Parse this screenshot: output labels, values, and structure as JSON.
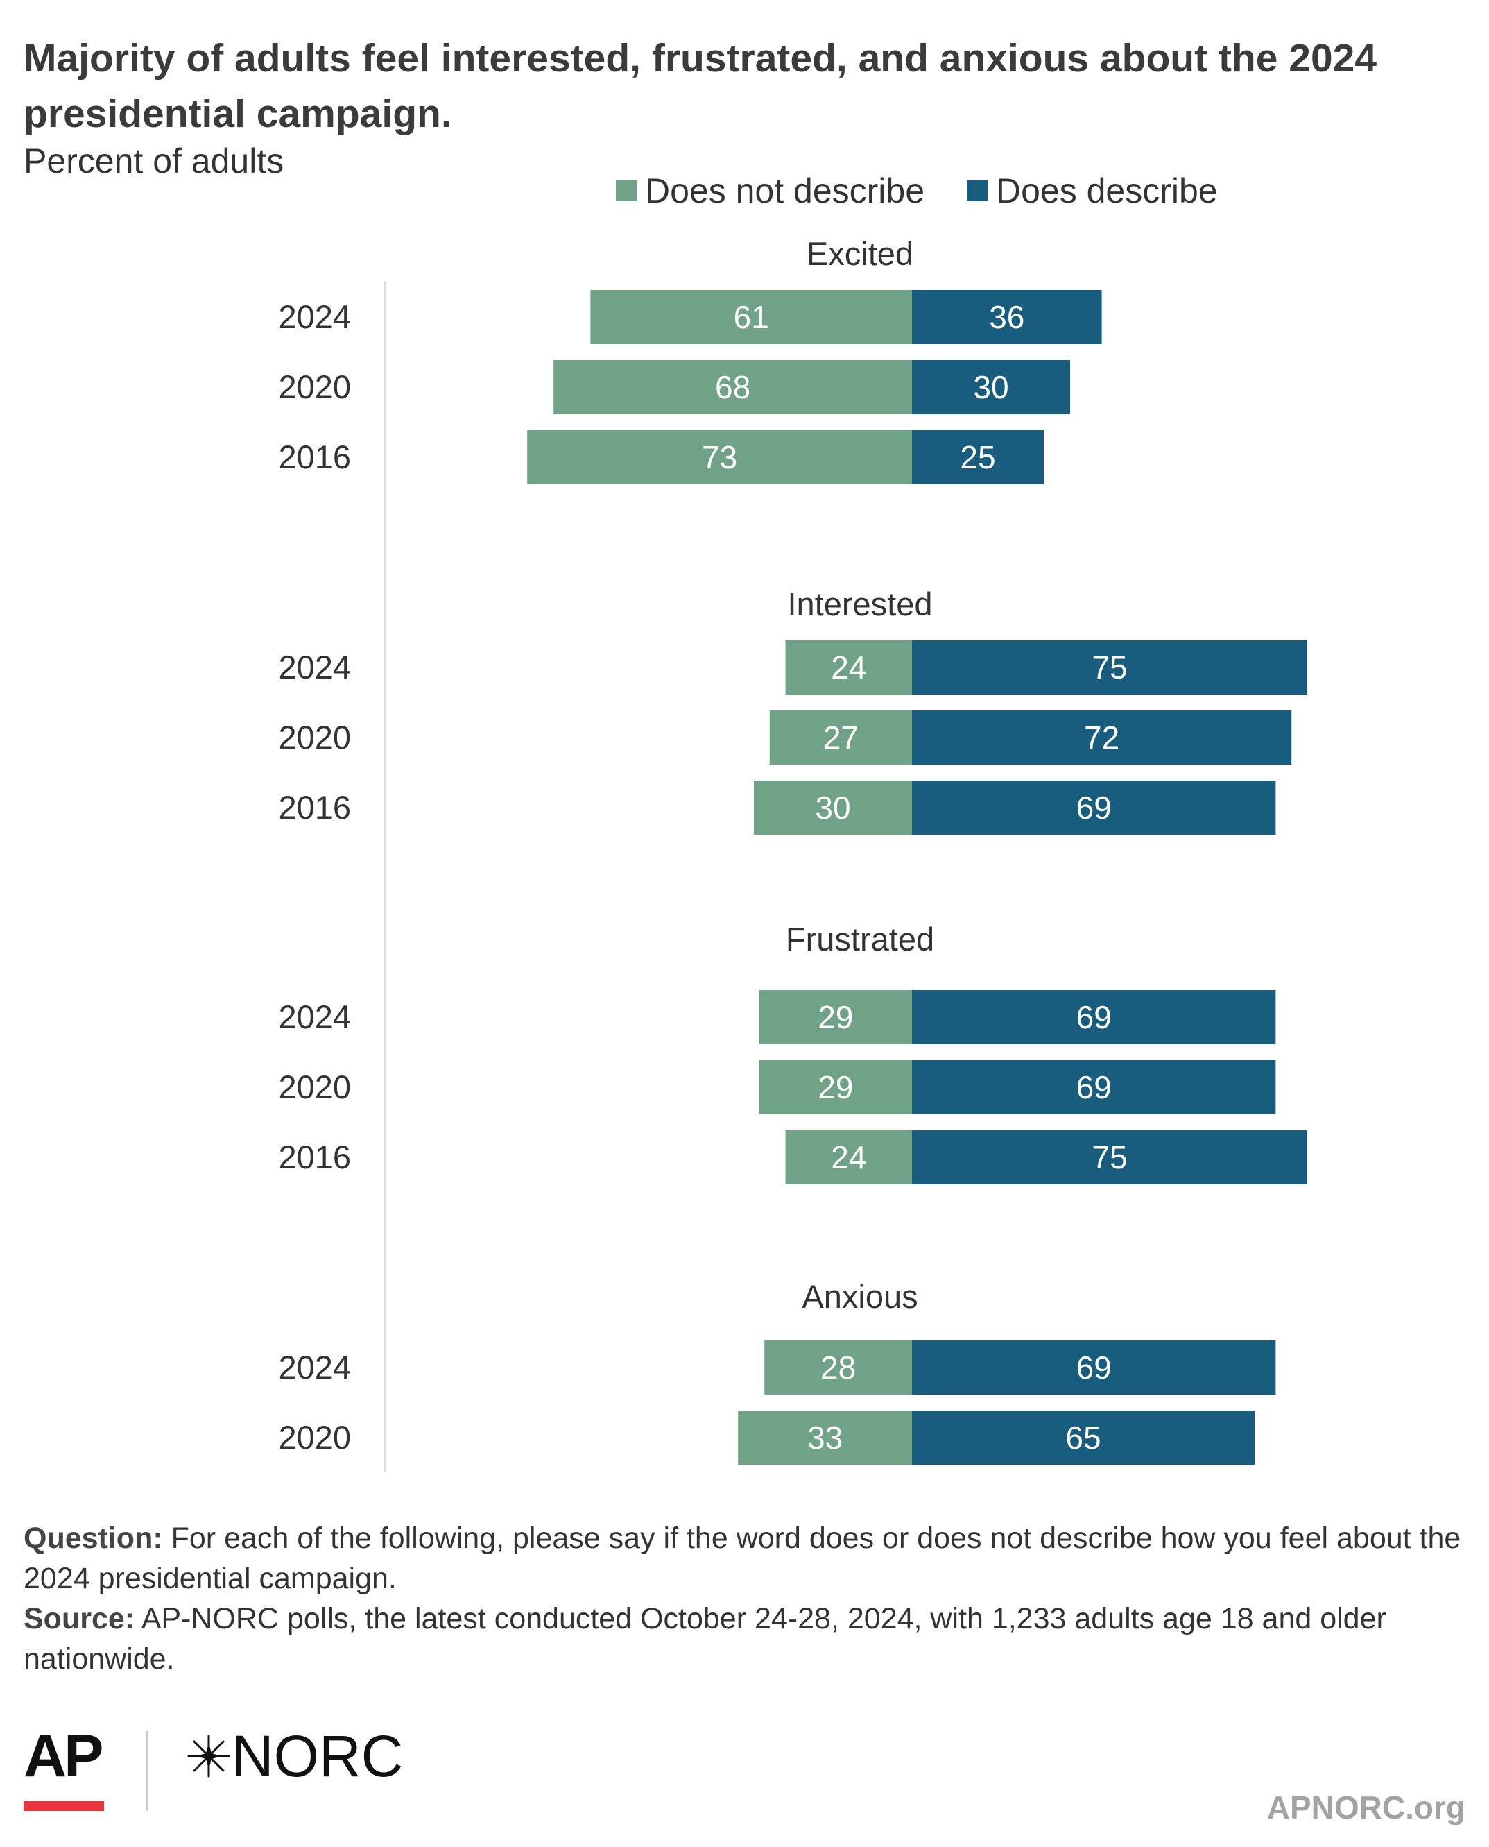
{
  "title": "Majority of adults feel interested, frustrated, and anxious about the 2024 presidential campaign.",
  "subtitle": "Percent of adults",
  "legend": [
    {
      "label": "Does not describe",
      "color": "#6fa287"
    },
    {
      "label": "Does describe",
      "color": "#185d7d"
    }
  ],
  "chart_data": {
    "type": "bar",
    "orientation": "horizontal-diverging",
    "series": [
      {
        "name": "Does not describe",
        "color": "#6fa287"
      },
      {
        "name": "Does describe",
        "color": "#185d7d"
      }
    ],
    "groups": [
      {
        "label": "Excited",
        "rows": [
          {
            "year": "2024",
            "not": 61,
            "does": 36
          },
          {
            "year": "2020",
            "not": 68,
            "does": 30
          },
          {
            "year": "2016",
            "not": 73,
            "does": 25
          }
        ]
      },
      {
        "label": "Interested",
        "rows": [
          {
            "year": "2024",
            "not": 24,
            "does": 75
          },
          {
            "year": "2020",
            "not": 27,
            "does": 72
          },
          {
            "year": "2016",
            "not": 30,
            "does": 69
          }
        ]
      },
      {
        "label": "Frustrated",
        "rows": [
          {
            "year": "2024",
            "not": 29,
            "does": 69
          },
          {
            "year": "2020",
            "not": 29,
            "does": 69
          },
          {
            "year": "2016",
            "not": 24,
            "does": 75
          }
        ]
      },
      {
        "label": "Anxious",
        "rows": [
          {
            "year": "2024",
            "not": 28,
            "does": 69
          },
          {
            "year": "2020",
            "not": 33,
            "does": 65
          }
        ]
      }
    ],
    "legend_position": "top-center",
    "grid": false
  },
  "footnotes": {
    "question_label": "Question:",
    "question_text": "For each of the following, please say if the word does or does not describe how you feel about the 2024 presidential campaign.",
    "source_label": "Source:",
    "source_text": "AP-NORC polls, the latest conducted October 24-28, 2024, with 1,233 adults age 18 and older nationwide."
  },
  "branding": {
    "ap_logo": "AP",
    "norc_logo": "NORC",
    "norc_icon": "star-icon",
    "site": "APNORC.org"
  }
}
